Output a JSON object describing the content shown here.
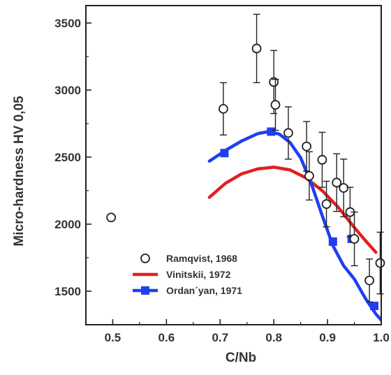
{
  "chart_data": {
    "type": "scatter",
    "xlabel": "C/Nb",
    "ylabel": "Micro-hardness HV 0,05",
    "xlim": [
      0.45,
      1.0
    ],
    "ylim": [
      1250,
      3630
    ],
    "x_ticks": [
      0.5,
      0.6,
      0.7,
      0.8,
      0.9,
      1.0
    ],
    "x_tick_labels": [
      "0.5",
      "0.6",
      "0.7",
      "0.8",
      "0.9",
      "1.0"
    ],
    "y_ticks": [
      1500,
      2000,
      2500,
      3000,
      3500
    ],
    "y_tick_labels": [
      "1500",
      "2000",
      "2500",
      "3000",
      "3500"
    ],
    "grid": false,
    "legend_position": "bottom-left",
    "series": [
      {
        "name": "Ramqvist, 1968",
        "kind": "points",
        "marker": "open-circle",
        "color": "#222222",
        "points": [
          {
            "x": 0.497,
            "y": 2050,
            "err": 0
          },
          {
            "x": 0.706,
            "y": 2860,
            "err": 195
          },
          {
            "x": 0.768,
            "y": 3310,
            "err": 255
          },
          {
            "x": 0.8,
            "y": 3060,
            "err": 235
          },
          {
            "x": 0.803,
            "y": 2890,
            "err": 190
          },
          {
            "x": 0.827,
            "y": 2680,
            "err": 195
          },
          {
            "x": 0.861,
            "y": 2580,
            "err": 185
          },
          {
            "x": 0.866,
            "y": 2360,
            "err": 180
          },
          {
            "x": 0.89,
            "y": 2480,
            "err": 205
          },
          {
            "x": 0.898,
            "y": 2150,
            "err": 170
          },
          {
            "x": 0.917,
            "y": 2310,
            "err": 215
          },
          {
            "x": 0.93,
            "y": 2270,
            "err": 215
          },
          {
            "x": 0.942,
            "y": 2090,
            "err": 185
          },
          {
            "x": 0.95,
            "y": 1890,
            "err": 200
          },
          {
            "x": 0.978,
            "y": 1580,
            "err": 160
          },
          {
            "x": 0.998,
            "y": 1710,
            "err": 230
          }
        ]
      },
      {
        "name": "Vinitskii, 1972",
        "kind": "line",
        "color": "#e02020",
        "x": [
          0.68,
          0.71,
          0.74,
          0.77,
          0.8,
          0.83,
          0.86,
          0.89,
          0.92,
          0.95,
          0.97,
          0.99
        ],
        "y": [
          2200,
          2305,
          2375,
          2412,
          2425,
          2405,
          2345,
          2250,
          2125,
          1975,
          1880,
          1790
        ]
      },
      {
        "name": "Ordan´yan, 1971",
        "kind": "line-with-markers",
        "color": "#1f3ff0",
        "x": [
          0.68,
          0.71,
          0.74,
          0.77,
          0.79,
          0.81,
          0.83,
          0.85,
          0.87,
          0.89,
          0.91,
          0.93,
          0.95,
          0.97,
          0.99,
          1.0
        ],
        "y": [
          2470,
          2550,
          2620,
          2675,
          2690,
          2672,
          2610,
          2495,
          2300,
          2065,
          1840,
          1690,
          1590,
          1450,
          1330,
          1285
        ],
        "markers": [
          {
            "x": 0.708,
            "y": 2530
          },
          {
            "x": 0.795,
            "y": 2690
          },
          {
            "x": 0.91,
            "y": 1870
          },
          {
            "x": 0.945,
            "y": 1890
          },
          {
            "x": 0.987,
            "y": 1390
          }
        ]
      }
    ]
  }
}
